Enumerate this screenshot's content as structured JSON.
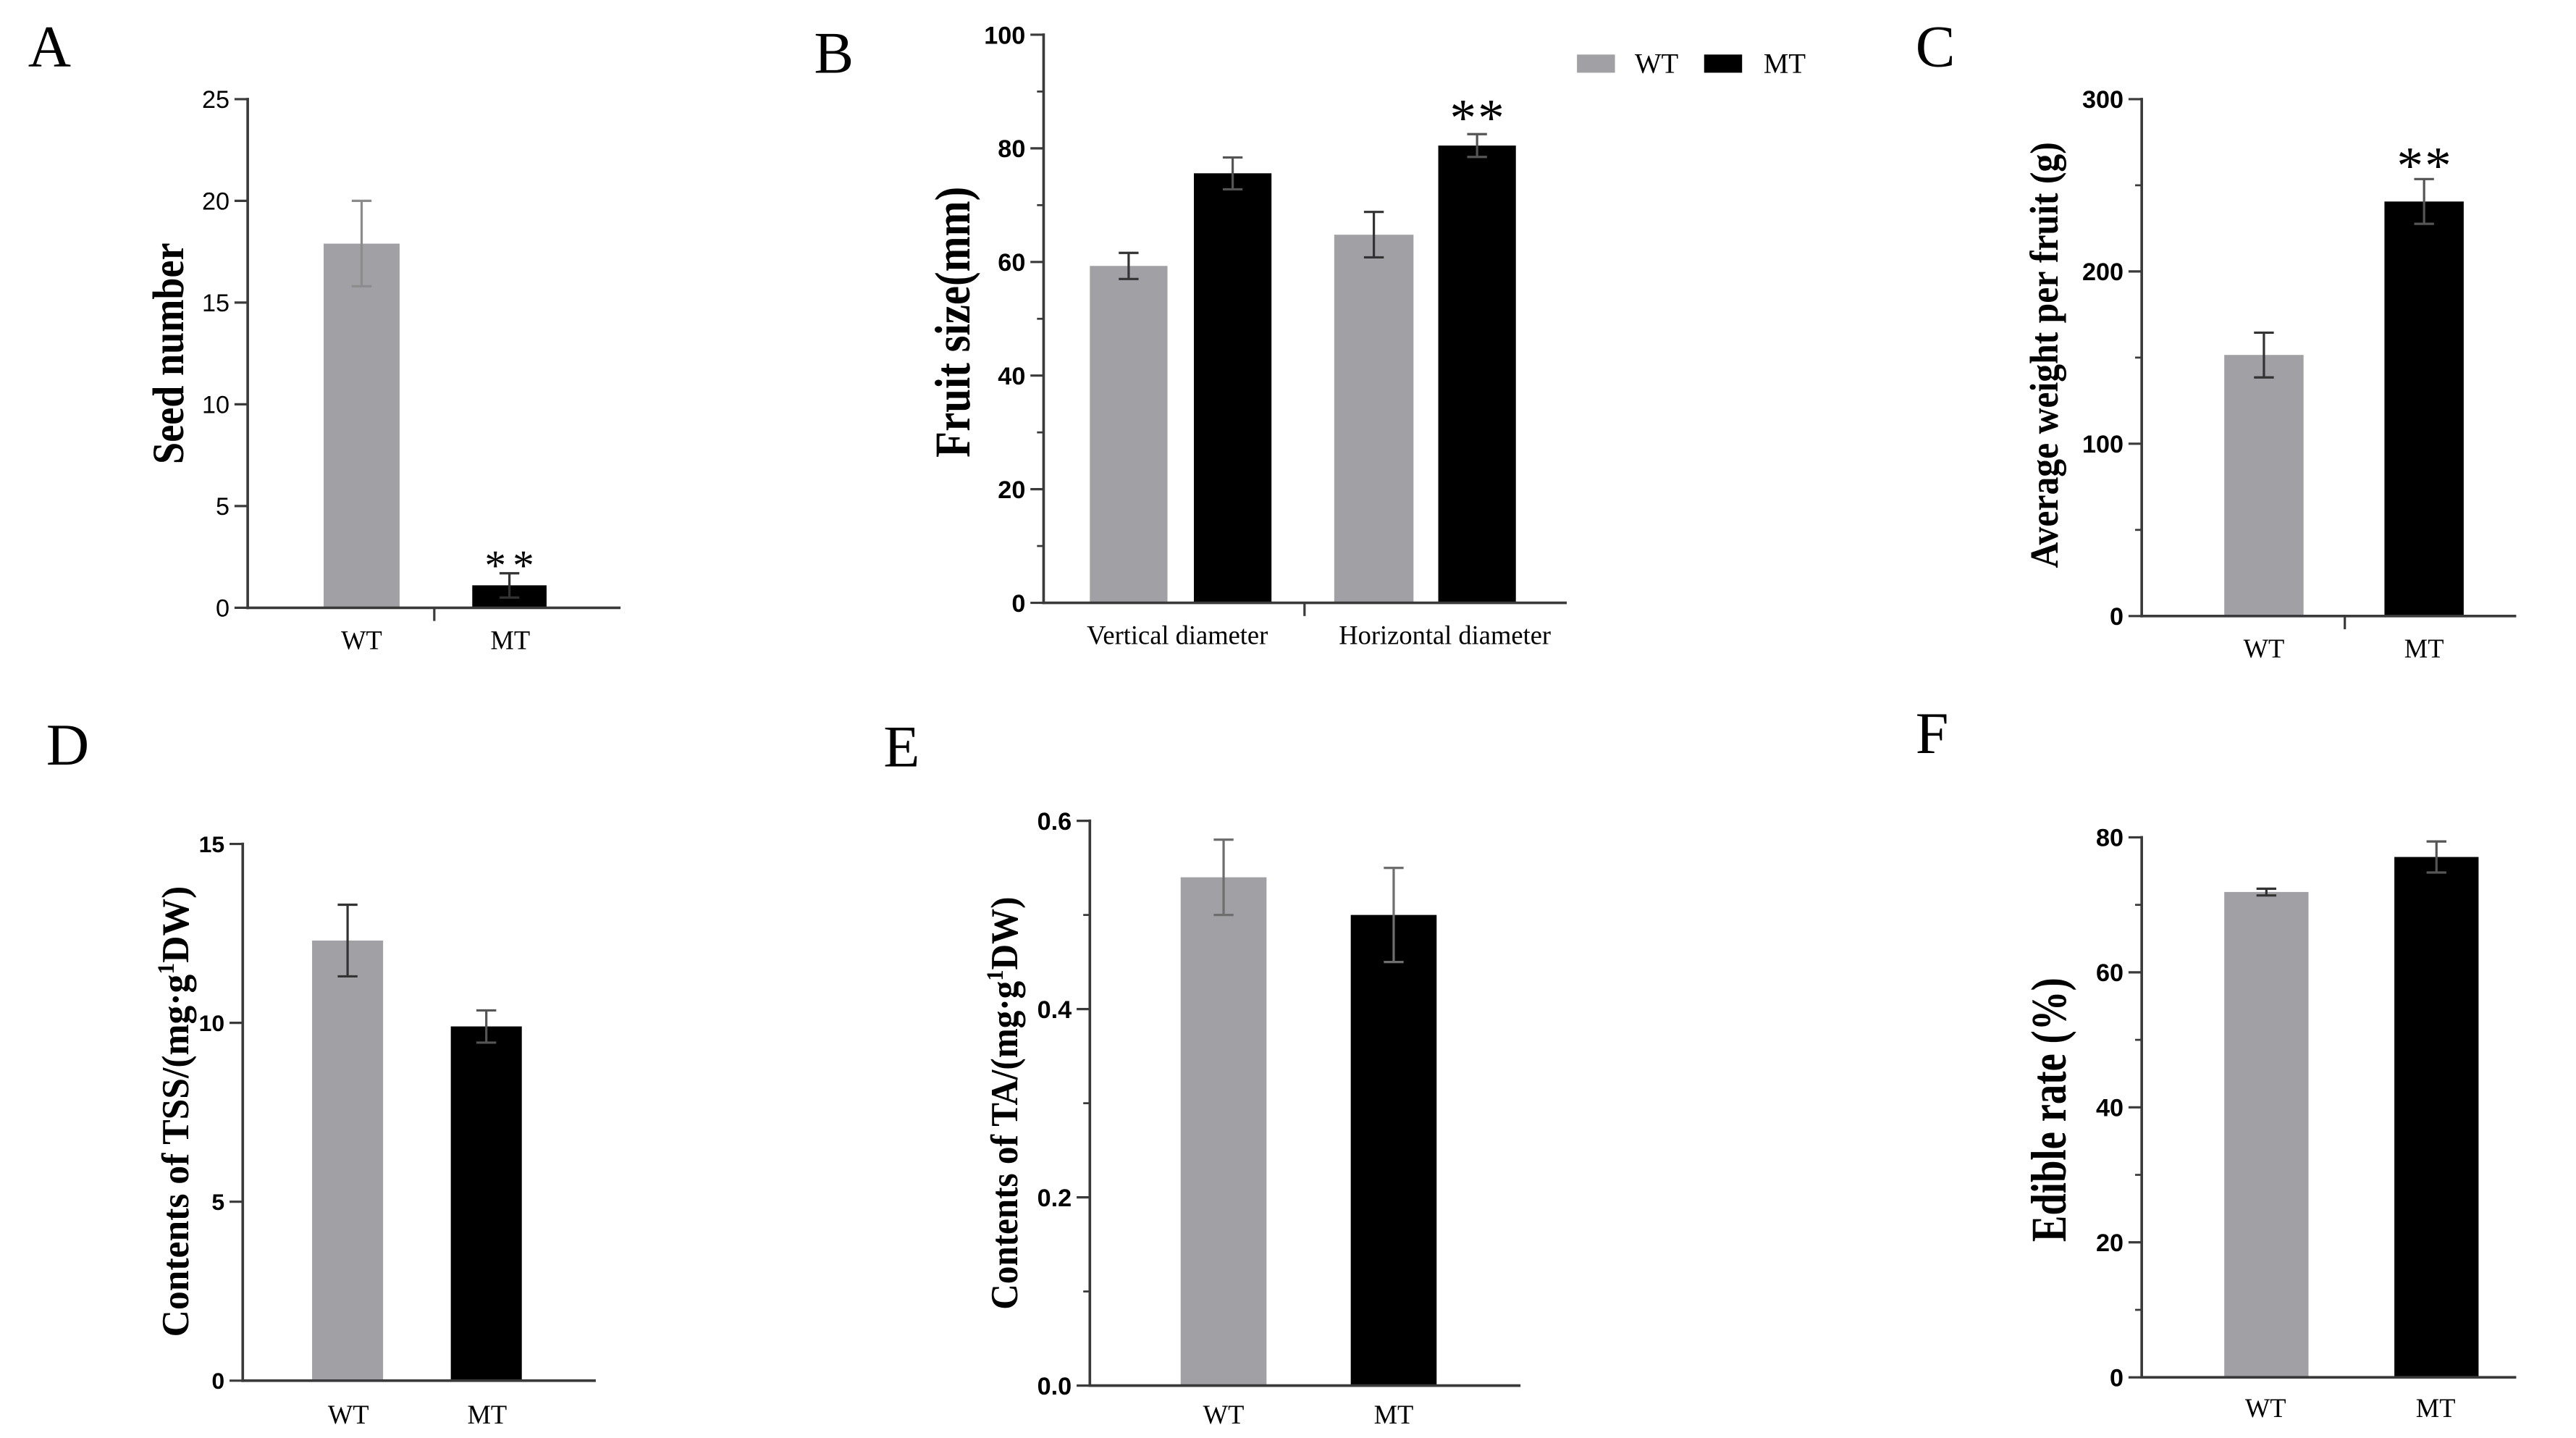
{
  "colors": {
    "WT": "#a0a0a5",
    "MT": "#000000"
  },
  "chart_data": [
    {
      "panel": "A",
      "type": "bar",
      "ylabel": "Seed number",
      "categories": [
        "WT",
        "MT"
      ],
      "values": [
        17.9,
        1.1
      ],
      "errors": [
        2.1,
        0.6
      ],
      "ylim": [
        0,
        25
      ],
      "yticks": [
        "0",
        "5",
        "10",
        "15",
        "20",
        "25"
      ],
      "significance": [
        {
          "index": 1,
          "label": "**"
        }
      ]
    },
    {
      "panel": "B",
      "type": "bar",
      "ylabel": "Fruit size(mm)",
      "categories": [
        "Vertical diameter",
        "Horizontal diameter"
      ],
      "series": [
        {
          "name": "WT",
          "values": [
            59.3,
            64.8
          ],
          "errors": [
            2.3,
            4.0
          ]
        },
        {
          "name": "MT",
          "values": [
            75.6,
            80.5
          ],
          "errors": [
            2.8,
            2.0
          ]
        }
      ],
      "ylim": [
        0,
        100
      ],
      "yticks": [
        "0",
        "20",
        "40",
        "60",
        "80",
        "100"
      ],
      "significance": [
        {
          "series_index": 1,
          "index": 1,
          "label": "**"
        }
      ]
    },
    {
      "panel": "C",
      "type": "bar",
      "ylabel": "Average weight per fruit (g)",
      "categories": [
        "WT",
        "MT"
      ],
      "values": [
        151.5,
        240.6
      ],
      "errors": [
        13.0,
        13.0
      ],
      "ylim": [
        0,
        300
      ],
      "yticks": [
        "0",
        "100",
        "200",
        "300"
      ],
      "significance": [
        {
          "index": 1,
          "label": "**"
        }
      ]
    },
    {
      "panel": "D",
      "type": "bar",
      "ylabel": "Contents of TSS/(mg·g",
      "ylabel_sup": "1",
      "ylabel_end": "DW)",
      "categories": [
        "WT",
        "MT"
      ],
      "values": [
        12.3,
        9.9
      ],
      "errors": [
        1.0,
        0.45
      ],
      "ylim": [
        0,
        15
      ],
      "yticks": [
        "0",
        "5",
        "10",
        "15"
      ]
    },
    {
      "panel": "E",
      "type": "bar",
      "ylabel": "Contents of TA/(mg·g",
      "ylabel_sup": "1",
      "ylabel_end": "DW)",
      "categories": [
        "WT",
        "MT"
      ],
      "values": [
        0.54,
        0.5
      ],
      "errors": [
        0.04,
        0.05
      ],
      "ylim": [
        0,
        0.6
      ],
      "yticks": [
        "0.0",
        "0.2",
        "0.4",
        "0.6"
      ]
    },
    {
      "panel": "F",
      "type": "bar",
      "ylabel": "Edible rate (%)",
      "categories": [
        "WT",
        "MT"
      ],
      "values": [
        71.9,
        77.1
      ],
      "errors": [
        0.5,
        2.3
      ],
      "ylim": [
        0,
        80
      ],
      "yticks": [
        "0",
        "20",
        "40",
        "60",
        "80"
      ]
    }
  ]
}
